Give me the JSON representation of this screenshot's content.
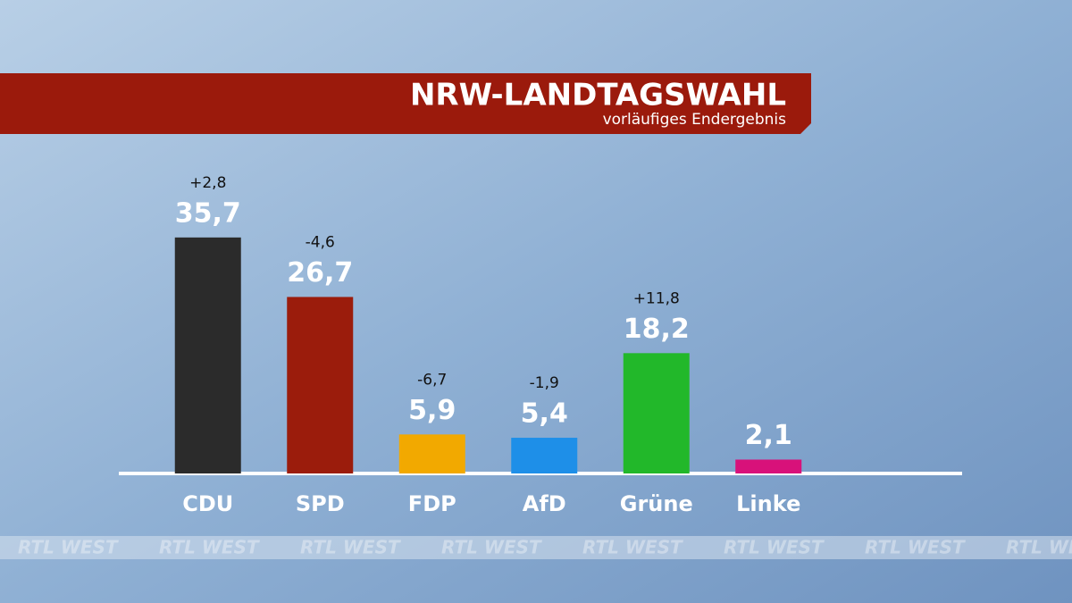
{
  "chart_data": {
    "type": "bar",
    "title": "NRW-LANDTAGSWAHL",
    "subtitle": "vorläufiges Endergebnis",
    "categories": [
      "CDU",
      "SPD",
      "FDP",
      "AfD",
      "Grüne",
      "Linke"
    ],
    "values": [
      35.7,
      26.7,
      5.9,
      5.4,
      18.2,
      2.1
    ],
    "value_labels": [
      "35,7",
      "26,7",
      "5,9",
      "5,4",
      "18,2",
      "2,1"
    ],
    "changes": [
      2.8,
      -4.6,
      -6.7,
      -1.9,
      11.8,
      null
    ],
    "change_labels": [
      "+2,8",
      "-4,6",
      "-6,7",
      "-1,9",
      "+11,8",
      null
    ],
    "colors": [
      "#2b2b2b",
      "#9b1c0c",
      "#f2a900",
      "#1e8fe8",
      "#22b82a",
      "#d8117a"
    ],
    "ylim": [
      0,
      40
    ],
    "watermark": "RTL WEST"
  }
}
